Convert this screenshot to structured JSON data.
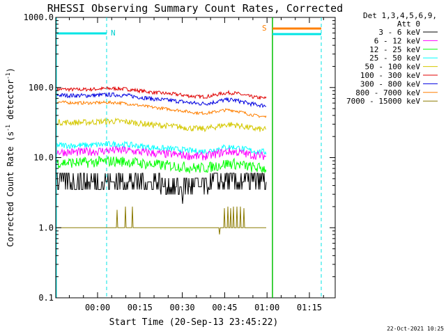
{
  "chart_data": {
    "type": "line",
    "title": "RHESSI Observing Summary Count Rates, Corrected",
    "xlabel": "Start Time (20-Sep-13 23:45:22)",
    "ylabel_main": "Corrected Count Rate (s",
    "ylabel_sup1": "-1",
    "ylabel_mid": " detector",
    "ylabel_sup2": "-1",
    "ylabel_end": ")",
    "yscale": "log",
    "ylim": [
      0.1,
      1000
    ],
    "ytick_labels": [
      "0.1",
      "1.0",
      "10.0",
      "100.0",
      "1000.0"
    ],
    "xtick_labels": [
      "00:00",
      "00:15",
      "00:30",
      "00:45",
      "01:00",
      "01:15"
    ],
    "legend_header": [
      "Det 1,3,4,5,6,9,",
      "Att 0"
    ],
    "series": [
      {
        "name": "3 - 6 keV",
        "color": "#000000"
      },
      {
        "name": "6 - 12 keV",
        "color": "#ff00ff"
      },
      {
        "name": "12 - 25 keV",
        "color": "#00ff00"
      },
      {
        "name": "25 - 50 keV",
        "color": "#00ffff"
      },
      {
        "name": "50 - 100 keV",
        "color": "#d4c800"
      },
      {
        "name": "100 - 300 keV",
        "color": "#e00000"
      },
      {
        "name": "300 - 800 keV",
        "color": "#0000e0"
      },
      {
        "name": "800 - 7000 keV",
        "color": "#ff7f00"
      },
      {
        "name": "7000 - 15000 keV",
        "color": "#8b7a00"
      }
    ],
    "annotations": {
      "n_label": "N",
      "s_label": "S"
    },
    "timestamp": "22-Oct-2021 10:25"
  }
}
